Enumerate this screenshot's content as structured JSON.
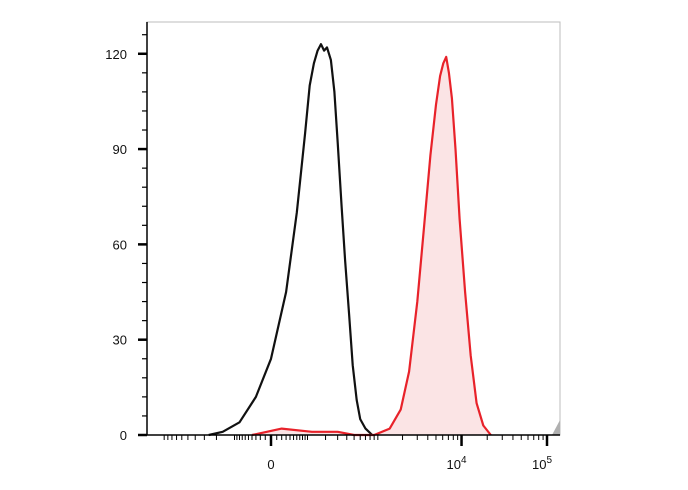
{
  "chart_data": {
    "type": "area",
    "title": "",
    "xlabel": "",
    "ylabel": "",
    "x_scale": "biexponential",
    "x_ticks": [
      {
        "value": 0,
        "label": "0",
        "exp": ""
      },
      {
        "value": 10000,
        "label": "10",
        "exp": "4"
      },
      {
        "value": 100000,
        "label": "10",
        "exp": "5"
      }
    ],
    "y_ticks": [
      0,
      30,
      60,
      90,
      120
    ],
    "ylim": [
      0,
      130
    ],
    "grid": false,
    "legend": "none",
    "colors": {
      "control": "#111111",
      "stained": "#e8222a",
      "stained_fill": "#fbe4e5",
      "axis": "#000000",
      "frame": "#bdbdbd"
    },
    "series": [
      {
        "color": "#111111",
        "filled": false,
        "points": [
          [
            -260,
            0
          ],
          [
            -160,
            1
          ],
          [
            -80,
            4
          ],
          [
            -30,
            12
          ],
          [
            0,
            24
          ],
          [
            30,
            45
          ],
          [
            60,
            70
          ],
          [
            90,
            95
          ],
          [
            110,
            110
          ],
          [
            130,
            117
          ],
          [
            150,
            121
          ],
          [
            170,
            123
          ],
          [
            190,
            121
          ],
          [
            210,
            122
          ],
          [
            240,
            118
          ],
          [
            270,
            108
          ],
          [
            300,
            92
          ],
          [
            340,
            72
          ],
          [
            380,
            55
          ],
          [
            430,
            38
          ],
          [
            480,
            22
          ],
          [
            540,
            11
          ],
          [
            600,
            5
          ],
          [
            700,
            2
          ],
          [
            850,
            0
          ]
        ]
      },
      {
        "color": "#e8222a",
        "filled": true,
        "points": [
          [
            -40,
            0
          ],
          [
            20,
            2
          ],
          [
            120,
            1
          ],
          [
            300,
            1
          ],
          [
            500,
            0
          ],
          [
            900,
            0
          ],
          [
            1400,
            2
          ],
          [
            1900,
            8
          ],
          [
            2400,
            20
          ],
          [
            3000,
            42
          ],
          [
            3600,
            65
          ],
          [
            4300,
            88
          ],
          [
            5000,
            104
          ],
          [
            5600,
            113
          ],
          [
            6100,
            117
          ],
          [
            6600,
            119
          ],
          [
            7100,
            114
          ],
          [
            7700,
            106
          ],
          [
            8500,
            90
          ],
          [
            9500,
            68
          ],
          [
            11000,
            45
          ],
          [
            12800,
            25
          ],
          [
            15000,
            10
          ],
          [
            18000,
            3
          ],
          [
            22000,
            0
          ]
        ]
      }
    ]
  }
}
